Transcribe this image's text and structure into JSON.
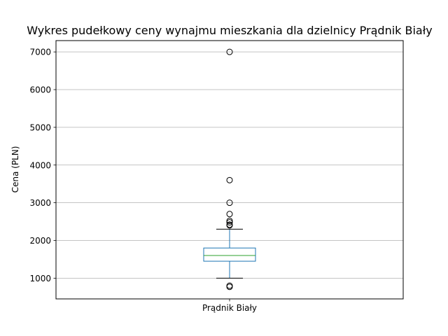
{
  "chart_data": {
    "type": "box",
    "title": "Wykres pudełkowy ceny wynajmu mieszkania dla dzielnicy  Prądnik Biały",
    "xlabel": "",
    "ylabel": "Cena (PLN)",
    "categories": [
      "Prądnik Biały"
    ],
    "ylim": [
      450,
      7300
    ],
    "yticks": [
      1000,
      2000,
      3000,
      4000,
      5000,
      6000,
      7000
    ],
    "grid": {
      "y": true,
      "x": false
    },
    "boxes": [
      {
        "category": "Prądnik Biały",
        "whisker_low": 1000,
        "q1": 1450,
        "median": 1600,
        "q3": 1800,
        "whisker_high": 2300,
        "outliers": [
          7000,
          3600,
          3000,
          2700,
          2520,
          2480,
          2420,
          2400,
          800,
          770
        ]
      }
    ],
    "colors": {
      "box": "#1f77b4",
      "median": "#2ca02c",
      "whisker": "#1f77b4",
      "cap": "#000000",
      "outlier": "#000000",
      "grid": "#b0b0b0",
      "frame": "#000000"
    }
  }
}
